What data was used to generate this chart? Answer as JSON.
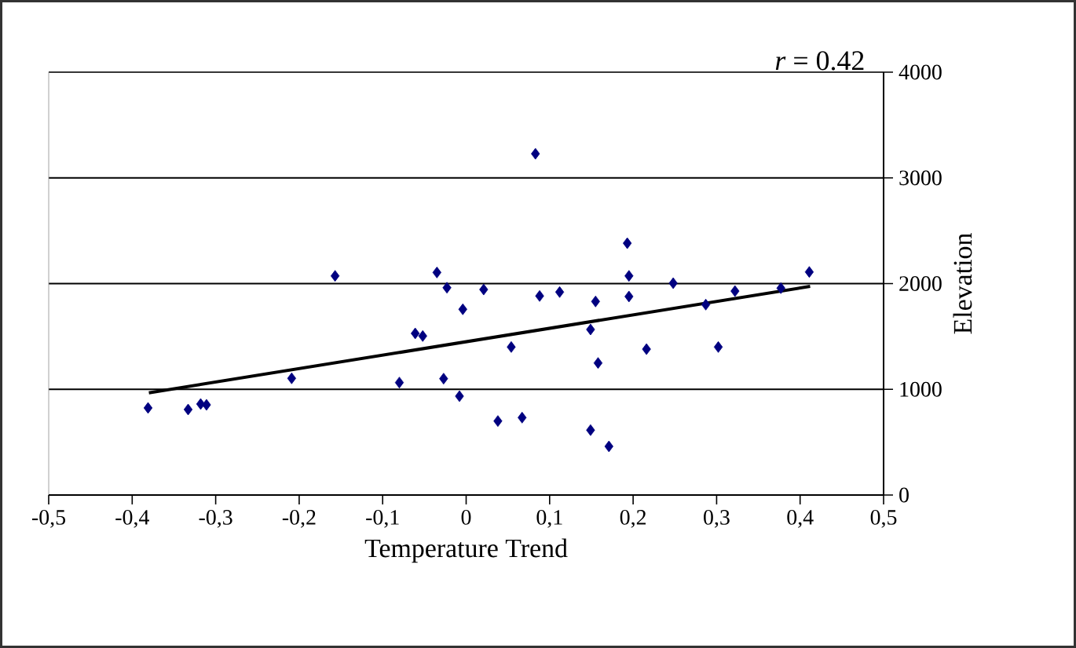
{
  "chart_data": {
    "type": "scatter",
    "xlabel": "Temperature Trend",
    "ylabel": "Elevation",
    "annotations": [
      "*r* = 0.42"
    ],
    "xlim": [
      -0.5,
      0.5
    ],
    "xticks": [
      {
        "value": -0.5,
        "label": "-0,5"
      },
      {
        "value": -0.4,
        "label": "-0,4"
      },
      {
        "value": -0.3,
        "label": "-0,3"
      },
      {
        "value": -0.2,
        "label": "-0,2"
      },
      {
        "value": -0.1,
        "label": "-0,1"
      },
      0,
      {
        "value": 0.1,
        "label": "0,1"
      },
      {
        "value": 0.2,
        "label": "0,2"
      },
      {
        "value": 0.3,
        "label": "0,3"
      },
      {
        "value": 0.4,
        "label": "0,4"
      },
      {
        "value": 0.5,
        "label": "0,5"
      }
    ],
    "ylim": [
      0,
      4000
    ],
    "yticks": [
      0,
      1000,
      2000,
      3000,
      4000
    ],
    "grid": "y",
    "marker": "diamond",
    "series": [
      {
        "color": "#000080",
        "x": [
          -0.381,
          -0.333,
          -0.318,
          -0.311,
          -0.209,
          -0.157,
          -0.08,
          -0.061,
          -0.052,
          -0.035,
          -0.023,
          -0.027,
          -0.004,
          -0.008,
          0.021,
          0.038,
          0.054,
          0.067,
          0.083,
          0.088,
          0.112,
          0.149,
          0.149,
          0.155,
          0.158,
          0.171,
          0.193,
          0.195,
          0.195,
          0.216,
          0.248,
          0.287,
          0.302,
          0.322,
          0.377,
          0.411
        ],
        "values": [
          824,
          809,
          861,
          853,
          1104,
          2073,
          1064,
          1529,
          1504,
          2105,
          1961,
          1101,
          1757,
          935,
          1944,
          700,
          1400,
          732,
          3228,
          1883,
          1920,
          1566,
          614,
          1831,
          1249,
          460,
          2382,
          2073,
          1878,
          1380,
          2004,
          1801,
          1400,
          1929,
          1957,
          2110
        ]
      },
      {
        "type": "line",
        "color": "#000000",
        "marker": "none",
        "x": [
          -0.38,
          0.412
        ],
        "values": [
          967,
          1974
        ]
      }
    ]
  }
}
